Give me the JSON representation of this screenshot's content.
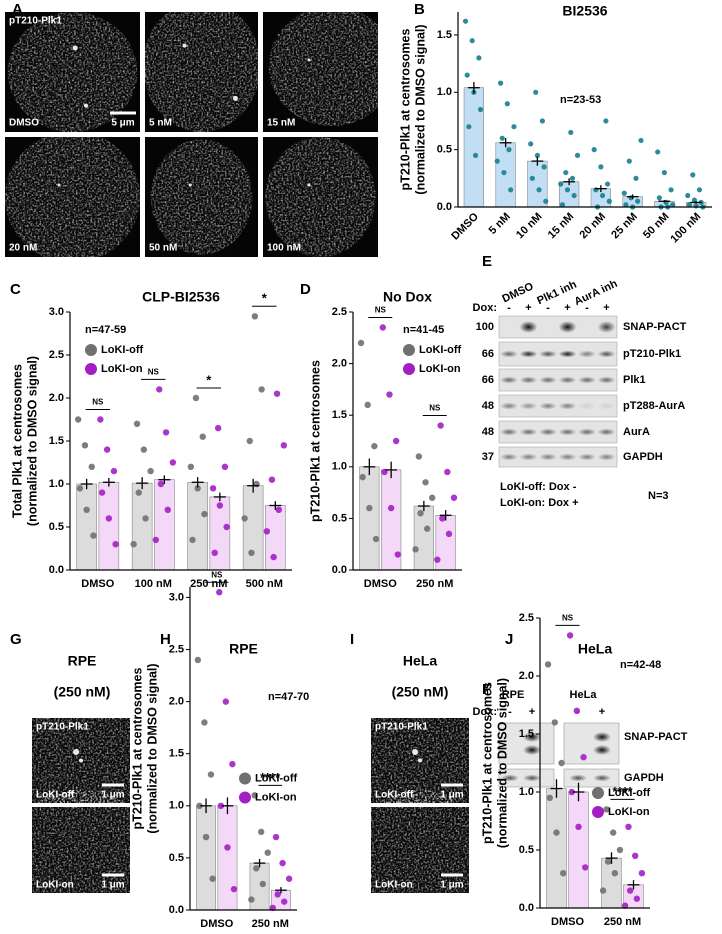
{
  "panel_labels": [
    "A",
    "B",
    "C",
    "D",
    "E",
    "F",
    "G",
    "H",
    "I",
    "J"
  ],
  "panel_a": {
    "stain": "pT210-Plk1",
    "scale_bar": "5 μm",
    "conditions": [
      "DMSO",
      "5 nM",
      "15 nM",
      "20 nM",
      "50 nM",
      "100 nM"
    ]
  },
  "panel_e": {
    "treatments": [
      "DMSO",
      "Plk1 inh",
      "AurA inh"
    ],
    "dox_label": "Dox:",
    "dox_states": [
      "-",
      "+",
      "-",
      "+",
      "-",
      "+"
    ],
    "rows": [
      {
        "mw": "100",
        "label": "SNAP-PACT"
      },
      {
        "mw": "66",
        "label": "pT210-Plk1"
      },
      {
        "mw": "66",
        "label": "Plk1"
      },
      {
        "mw": "48",
        "label": "pT288-AurA"
      },
      {
        "mw": "48",
        "label": "AurA"
      },
      {
        "mw": "37",
        "label": "GAPDH"
      }
    ],
    "notes": [
      "LoKI-off: Dox -",
      "LoKI-on: Dox +"
    ],
    "replicates": "N=3"
  },
  "panel_f": {
    "cell_lines": [
      "RPE",
      "HeLa"
    ],
    "dox_label": "Dox:",
    "dox_states": [
      "-",
      "+",
      "-",
      "+"
    ],
    "rows": [
      "SNAP-PACT",
      "GAPDH"
    ]
  },
  "panel_g": {
    "title": "RPE",
    "treatment": "(250 nM)",
    "stain": "pT210-Plk1",
    "images": [
      {
        "label": "LoKI-off",
        "scale_bar": "1 μm"
      },
      {
        "label": "LoKI-on",
        "scale_bar": "1 μm"
      }
    ]
  },
  "panel_i": {
    "title": "HeLa",
    "treatment": "(250 nM)",
    "stain": "pT210-Plk1",
    "images": [
      {
        "label": "LoKI-off",
        "scale_bar": "1 μm"
      },
      {
        "label": "LoKI-on",
        "scale_bar": "1 μm"
      }
    ]
  },
  "chart_data": [
    {
      "type": "bar",
      "title": "BI2536",
      "ylabel": [
        "pT210-Plk1 at centrosomes",
        "(normalized to DMSO signal)"
      ],
      "annotation": "n=23-53",
      "categories": [
        "DMSO",
        "5 nM",
        "10 nM",
        "15 nM",
        "20 nM",
        "25 nM",
        "50 nM",
        "100 nM"
      ],
      "ylim": [
        0,
        1.7
      ],
      "yticks": [
        {
          "value": 0,
          "label": "0.0"
        },
        0.5,
        {
          "value": 1,
          "label": "1.0"
        },
        1.5
      ],
      "series": [
        {
          "color": "#c2def5",
          "point_color": "#17808e",
          "values": [
            1.04,
            0.56,
            0.4,
            0.22,
            0.16,
            0.09,
            0.05,
            0.04
          ],
          "errors": [
            0.05,
            0.04,
            0.04,
            0.03,
            0.03,
            0.02,
            0.01,
            0.01
          ],
          "points": [
            [
              1.62,
              1.45,
              1.3,
              1.15,
              1.0,
              0.85,
              0.7,
              0.45
            ],
            [
              1.08,
              0.9,
              0.7,
              0.6,
              0.5,
              0.4,
              0.3,
              0.15
            ],
            [
              1.0,
              0.75,
              0.55,
              0.45,
              0.35,
              0.25,
              0.15,
              0.05
            ],
            [
              0.65,
              0.45,
              0.3,
              0.25,
              0.2,
              0.15,
              0.1,
              0.02
            ],
            [
              0.75,
              0.5,
              0.35,
              0.2,
              0.15,
              0.1,
              0.05,
              0.0
            ],
            [
              0.58,
              0.4,
              0.25,
              0.12,
              0.08,
              0.05,
              0.02,
              0.0
            ],
            [
              0.48,
              0.3,
              0.15,
              0.08,
              0.04,
              0.02,
              0.0,
              0.0
            ],
            [
              0.28,
              0.15,
              0.1,
              0.06,
              0.04,
              0.02,
              0.01,
              0.0
            ]
          ]
        }
      ]
    },
    {
      "type": "bar",
      "title": "CLP-BI2536",
      "ylabel": [
        "Total Plk1 at centrosomes",
        "(normalized to DMSO signal)"
      ],
      "annotation": "n=47-59",
      "categories": [
        "DMSO",
        "100 nM",
        "250 nM",
        "500 nM"
      ],
      "legend_loc": "upper left",
      "ylim": [
        0,
        3.0
      ],
      "yticks": [
        {
          "value": 0,
          "label": "0.0"
        },
        0.5,
        {
          "value": 1,
          "label": "1.0"
        },
        1.5,
        {
          "value": 2,
          "label": "2.0"
        },
        2.5,
        {
          "value": 3,
          "label": "3.0"
        }
      ],
      "significance": [
        "NS",
        "NS",
        "*",
        "*"
      ],
      "series": [
        {
          "name": "LoKI-off",
          "color": "#dcdcdc",
          "point_color": "#707070",
          "values": [
            1.0,
            1.01,
            1.02,
            0.98
          ],
          "errors": [
            0.06,
            0.07,
            0.06,
            0.08
          ],
          "points": [
            [
              1.75,
              1.45,
              1.2,
              0.95,
              0.7,
              0.4
            ],
            [
              1.7,
              1.4,
              1.15,
              0.9,
              0.6,
              0.3
            ],
            [
              2.0,
              1.55,
              1.2,
              0.95,
              0.65,
              0.35
            ],
            [
              2.95,
              2.1,
              1.5,
              1.0,
              0.6,
              0.2
            ]
          ]
        },
        {
          "name": "LoKI-on",
          "color": "#f3d8f7",
          "point_color": "#a31fc4",
          "values": [
            1.02,
            1.05,
            0.85,
            0.75
          ],
          "errors": [
            0.05,
            0.05,
            0.05,
            0.05
          ],
          "points": [
            [
              1.75,
              1.4,
              1.15,
              0.9,
              0.6,
              0.3
            ],
            [
              2.1,
              1.6,
              1.25,
              1.0,
              0.7,
              0.35
            ],
            [
              1.65,
              1.2,
              0.95,
              0.75,
              0.5,
              0.2
            ],
            [
              2.05,
              1.45,
              1.05,
              0.7,
              0.45,
              0.15
            ]
          ]
        }
      ]
    },
    {
      "type": "bar",
      "title": "No Dox",
      "ylabel": [
        "pT210-Plk1 at centrosomes"
      ],
      "annotation": "n=41-45",
      "categories": [
        "DMSO",
        "250 nM"
      ],
      "legend_loc": "upper left",
      "ylim": [
        0,
        2.5
      ],
      "yticks": [
        {
          "value": 0,
          "label": "0.0"
        },
        0.5,
        {
          "value": 1,
          "label": "1.0"
        },
        1.5,
        {
          "value": 2,
          "label": "2.0"
        },
        2.5
      ],
      "significance": [
        "NS",
        "NS"
      ],
      "series": [
        {
          "name": "LoKI-off",
          "color": "#dcdcdc",
          "point_color": "#707070",
          "values": [
            1.0,
            0.62
          ],
          "errors": [
            0.08,
            0.05
          ],
          "points": [
            [
              2.2,
              1.6,
              1.2,
              0.9,
              0.6,
              0.3
            ],
            [
              1.1,
              0.85,
              0.7,
              0.55,
              0.4,
              0.2
            ]
          ]
        },
        {
          "name": "LoKI-on",
          "color": "#f3d8f7",
          "point_color": "#a31fc4",
          "values": [
            0.97,
            0.53
          ],
          "errors": [
            0.08,
            0.05
          ],
          "points": [
            [
              2.35,
              1.7,
              1.25,
              0.95,
              0.6,
              0.15
            ],
            [
              1.4,
              0.95,
              0.7,
              0.5,
              0.35,
              0.1
            ]
          ]
        }
      ]
    },
    {
      "type": "bar",
      "title": "RPE",
      "ylabel": [
        "pT210-Plk1 at centrosomes",
        "(normalized to DMSO signal)"
      ],
      "annotation": "n=47-70",
      "categories": [
        "DMSO",
        "250 nM"
      ],
      "legend_loc": "center right",
      "ylim": [
        0,
        3.1
      ],
      "yticks": [
        {
          "value": 0,
          "label": "0.0"
        },
        0.5,
        {
          "value": 1,
          "label": "1.0"
        },
        1.5,
        {
          "value": 2,
          "label": "2.0"
        },
        2.5,
        {
          "value": 3,
          "label": "3.0"
        }
      ],
      "significance": [
        "NS",
        "****"
      ],
      "series": [
        {
          "name": "LoKI-off",
          "color": "#dcdcdc",
          "point_color": "#707070",
          "values": [
            1.0,
            0.45
          ],
          "errors": [
            0.07,
            0.04
          ],
          "points": [
            [
              2.4,
              1.8,
              1.3,
              1.0,
              0.7,
              0.3
            ],
            [
              1.1,
              0.75,
              0.55,
              0.4,
              0.25,
              0.1
            ]
          ]
        },
        {
          "name": "LoKI-on",
          "color": "#f3d8f7",
          "point_color": "#a31fc4",
          "values": [
            1.0,
            0.19
          ],
          "errors": [
            0.08,
            0.03
          ],
          "points": [
            [
              3.05,
              2.0,
              1.4,
              1.0,
              0.6,
              0.2
            ],
            [
              0.7,
              0.45,
              0.3,
              0.15,
              0.08,
              0.02
            ]
          ]
        }
      ]
    },
    {
      "type": "bar",
      "title": "HeLa",
      "ylabel": [
        "pT210-Plk1 at centrosomes",
        "(normalized to DMSO signal)"
      ],
      "annotation": "n=42-48",
      "categories": [
        "DMSO",
        "250 nM"
      ],
      "legend_loc": "center right",
      "ylim": [
        0,
        2.5
      ],
      "yticks": [
        {
          "value": 0,
          "label": "0.0"
        },
        0.5,
        {
          "value": 1,
          "label": "1.0"
        },
        1.5,
        {
          "value": 2,
          "label": "2.0"
        },
        2.5
      ],
      "significance": [
        "NS",
        "****"
      ],
      "series": [
        {
          "name": "LoKI-off",
          "color": "#dcdcdc",
          "point_color": "#707070",
          "values": [
            1.03,
            0.43
          ],
          "errors": [
            0.08,
            0.05
          ],
          "points": [
            [
              2.1,
              1.6,
              1.25,
              0.95,
              0.65,
              0.3
            ],
            [
              0.85,
              0.65,
              0.5,
              0.4,
              0.3,
              0.15
            ]
          ]
        },
        {
          "name": "LoKI-on",
          "color": "#f3d8f7",
          "point_color": "#a31fc4",
          "values": [
            1.0,
            0.2
          ],
          "errors": [
            0.08,
            0.04
          ],
          "points": [
            [
              2.35,
              1.7,
              1.3,
              1.0,
              0.7,
              0.35
            ],
            [
              0.7,
              0.45,
              0.3,
              0.15,
              0.08,
              0.02
            ]
          ]
        }
      ]
    }
  ]
}
